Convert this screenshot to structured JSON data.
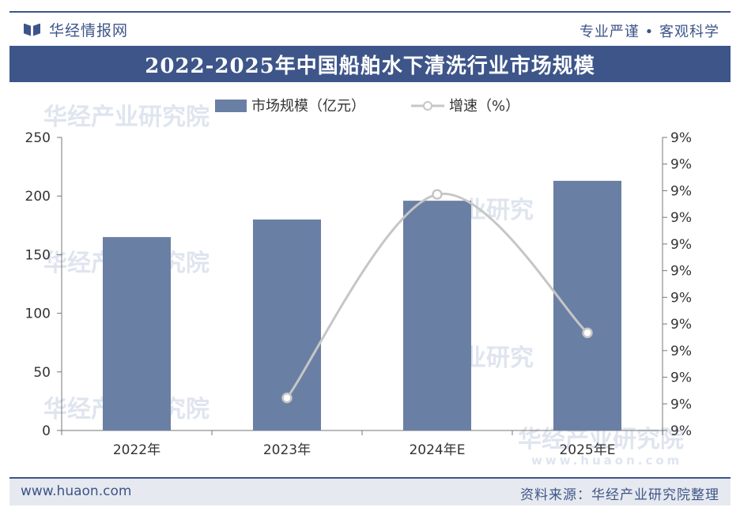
{
  "header": {
    "brand": "华经情报网",
    "slogan": "专业严谨 • 客观科学"
  },
  "title": "2022-2025年中国船舶水下清洗行业市场规模",
  "footer": {
    "site": "www.huaon.com",
    "source": "资料来源：华经产业研究院整理"
  },
  "watermark": {
    "name": "华经产业研究院",
    "short": "业研究",
    "site": "www.huaon.com"
  },
  "colors": {
    "brand": "#3d5589",
    "bar": "#6a7fa4",
    "line": "#c6c6c6"
  },
  "chart_data": {
    "type": "bar",
    "categories": [
      "2022年",
      "2023年",
      "2024年E",
      "2025年E"
    ],
    "series": [
      {
        "name": "市场规模（亿元）",
        "type": "bar",
        "axis": "left",
        "values": [
          165,
          180,
          196,
          213
        ]
      },
      {
        "name": "增速（%）",
        "type": "line",
        "axis": "right",
        "values": [
          null,
          9.0,
          9.25,
          9.08
        ]
      }
    ],
    "y_left": {
      "min": 0,
      "max": 250,
      "ticks": [
        "0",
        "50",
        "100",
        "150",
        "200",
        "250"
      ]
    },
    "y_right": {
      "min": 8.96,
      "max": 9.32,
      "ticks": [
        "9%",
        "9%",
        "9%",
        "9%",
        "9%",
        "9%",
        "9%",
        "9%",
        "9%",
        "9%",
        "9%",
        "9%"
      ]
    },
    "legend_position": "top",
    "grid": false
  }
}
